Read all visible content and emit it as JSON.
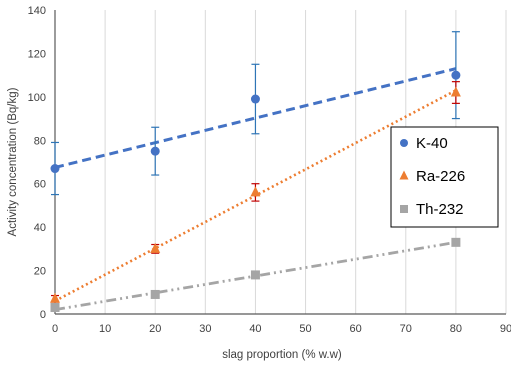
{
  "chart_data": {
    "type": "scatter",
    "xlabel": "slag proportion (% w.w)",
    "ylabel": "Activity concentration (Bq/kg)",
    "xlim": [
      0,
      90
    ],
    "ylim": [
      0,
      140
    ],
    "x_ticks": [
      0,
      10,
      20,
      30,
      40,
      50,
      60,
      70,
      80,
      90
    ],
    "y_ticks": [
      0,
      20,
      40,
      60,
      80,
      100,
      120,
      140
    ],
    "grid": "vertical",
    "legend_position": "right",
    "series": [
      {
        "name": "K-40",
        "color": "#4472C4",
        "errorbar_color": "#2E75B6",
        "marker": "circle",
        "x": [
          0,
          20,
          40,
          80
        ],
        "y": [
          67,
          75,
          99,
          110
        ],
        "error": [
          12,
          11,
          16,
          20
        ],
        "trendline": {
          "style": "dashed",
          "from": [
            0,
            67.5
          ],
          "to": [
            80,
            113
          ]
        }
      },
      {
        "name": "Ra-226",
        "color": "#ED7D31",
        "errorbar_color": "#C00000",
        "marker": "triangle",
        "x": [
          0,
          20,
          40,
          80
        ],
        "y": [
          7,
          30,
          56,
          102
        ],
        "error": [
          1.5,
          2,
          4,
          5
        ],
        "trendline": {
          "style": "dotted",
          "from": [
            0,
            6
          ],
          "to": [
            80,
            103
          ]
        }
      },
      {
        "name": "Th-232",
        "color": "#A5A5A5",
        "errorbar_color": "#A5A5A5",
        "marker": "square",
        "x": [
          0,
          20,
          40,
          80
        ],
        "y": [
          3,
          9,
          18,
          33
        ],
        "error": [
          0.8,
          1,
          1.2,
          1.5
        ],
        "trendline": {
          "style": "dash-dot-dot",
          "from": [
            0,
            2
          ],
          "to": [
            80,
            33
          ]
        }
      }
    ]
  }
}
